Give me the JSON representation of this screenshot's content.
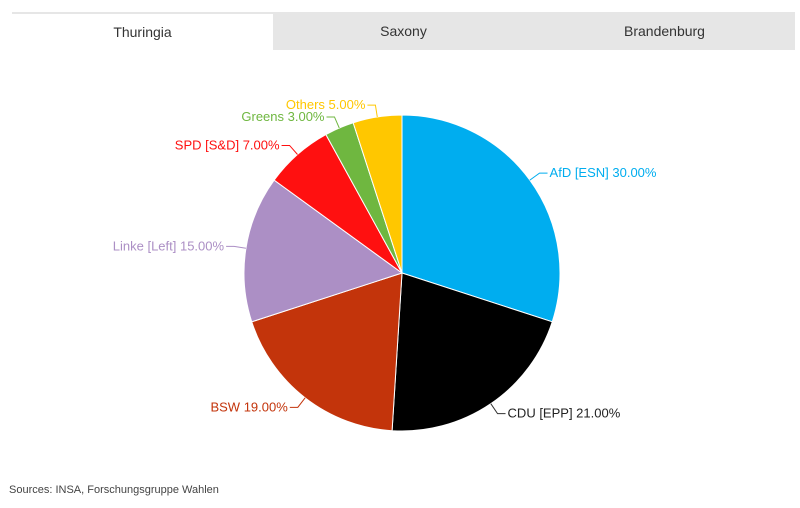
{
  "tabs": [
    {
      "label": "Thuringia",
      "active": true
    },
    {
      "label": "Saxony",
      "active": false
    },
    {
      "label": "Brandenburg",
      "active": false
    }
  ],
  "source": "Sources: INSA, Forschungsgruppe Wahlen",
  "chart_data": {
    "type": "pie",
    "title": "",
    "slices": [
      {
        "label": "AfD [ESN] 30.00%",
        "value": 30,
        "color": "#00adef"
      },
      {
        "label": "CDU [EPP] 21.00%",
        "value": 21,
        "color": "#000000"
      },
      {
        "label": "BSW 19.00%",
        "value": 19,
        "color": "#c3340b"
      },
      {
        "label": "Linke [Left] 15.00%",
        "value": 15,
        "color": "#ac8fc5"
      },
      {
        "label": "SPD [S&D] 7.00%",
        "value": 7,
        "color": "#ff1010"
      },
      {
        "label": "Greens 3.00%",
        "value": 3,
        "color": "#6fb740"
      },
      {
        "label": "Others 5.00%",
        "value": 5,
        "color": "#ffc700"
      }
    ]
  }
}
